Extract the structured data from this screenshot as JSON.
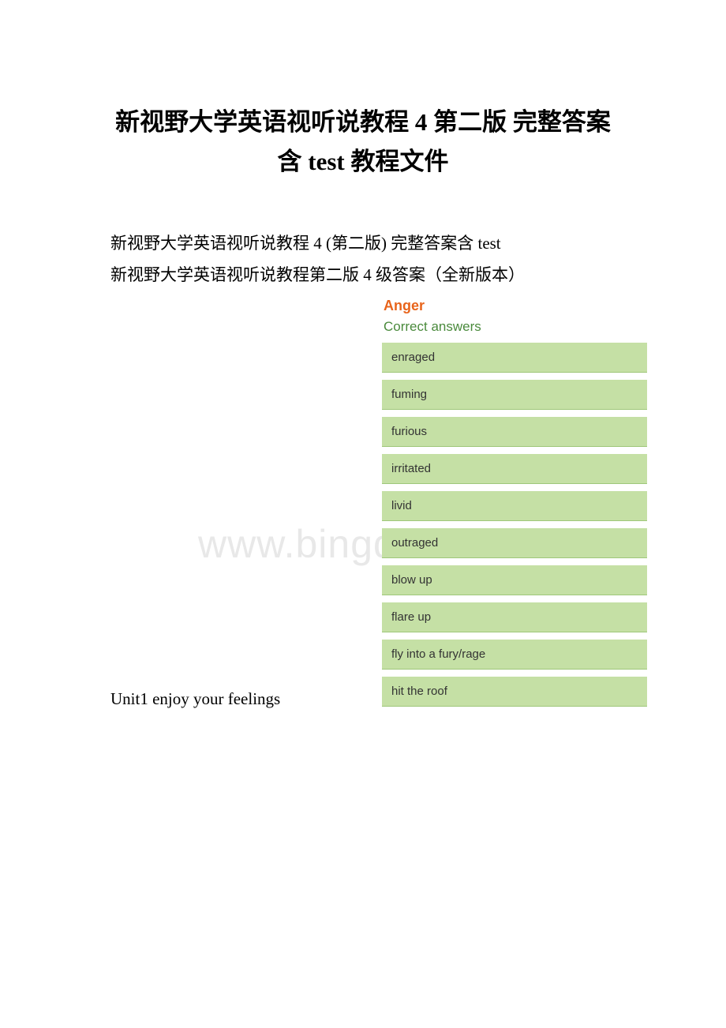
{
  "title_line1": "新视野大学英语视听说教程 4 第二版 完整答案",
  "title_line2": "含 test 教程文件",
  "para1": "新视野大学英语视听说教程 4 (第二版) 完整答案含 test",
  "para2": "新视野大学英语视听说教程第二版 4 级答案（全新版本）",
  "unit_caption": "Unit1 enjoy your feelings",
  "watermark": "www.bingdoc.com",
  "answers": {
    "heading": "Anger",
    "subheading": "Correct answers",
    "heading_color": "#e8641b",
    "subheading_color": "#4a8a3c",
    "item_bg": "#c5e0a5",
    "item_border": "#9fc77a",
    "item_text_color": "#333333",
    "items": [
      "enraged",
      "fuming",
      "furious",
      "irritated",
      "livid",
      "outraged",
      "blow up",
      "flare up",
      "fly into a fury/rage",
      "hit the roof"
    ]
  }
}
